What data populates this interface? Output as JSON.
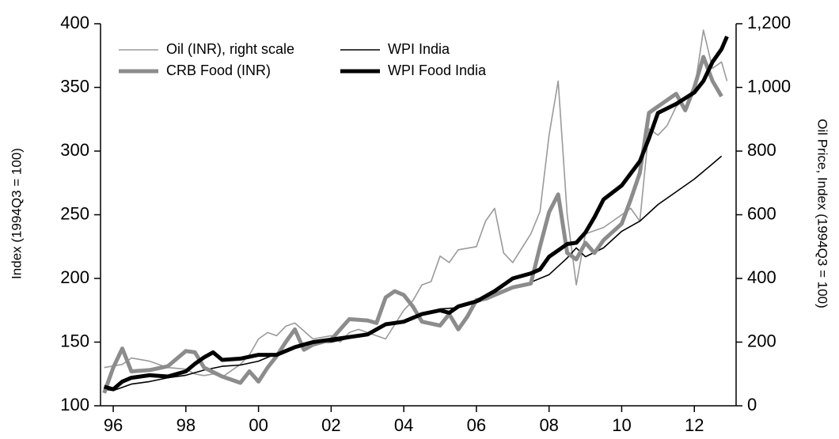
{
  "chart_data": {
    "type": "line",
    "y_label": "Index (1994Q3 = 100)",
    "y2_label": "Oil Price, Index (1994Q3 = 100)",
    "xlim": [
      1995.65,
      2013.15
    ],
    "xticks": [
      {
        "value": 1996,
        "label": "96"
      },
      {
        "value": 1998,
        "label": "98"
      },
      {
        "value": 2000,
        "label": "00"
      },
      {
        "value": 2002,
        "label": "02"
      },
      {
        "value": 2004,
        "label": "04"
      },
      {
        "value": 2006,
        "label": "06"
      },
      {
        "value": 2008,
        "label": "08"
      },
      {
        "value": 2010,
        "label": "10"
      },
      {
        "value": 2012,
        "label": "12"
      }
    ],
    "ylim": [
      100,
      400
    ],
    "yticks": [
      100,
      150,
      200,
      250,
      300,
      350,
      400
    ],
    "y2lim": [
      0,
      1200
    ],
    "y2ticks": [
      0,
      200,
      400,
      600,
      800,
      {
        "value": 1000,
        "label": "1,000"
      },
      {
        "value": 1200,
        "label": "1,200"
      }
    ],
    "series": [
      {
        "name": "Oil (INR), right scale",
        "color": "#9a9a9a",
        "axis": "y2",
        "x": [
          1995.75,
          1996,
          1996.25,
          1996.5,
          1996.75,
          1997,
          1997.5,
          1998,
          1998.25,
          1998.5,
          1998.75,
          1999,
          1999.25,
          1999.5,
          1999.75,
          2000,
          2000.25,
          2000.5,
          2000.75,
          2001,
          2001.5,
          2002,
          2002.25,
          2002.5,
          2002.75,
          2003,
          2003.5,
          2004,
          2004.25,
          2004.5,
          2004.75,
          2005,
          2005.25,
          2005.5,
          2006,
          2006.25,
          2006.5,
          2006.75,
          2007,
          2007.5,
          2007.75,
          2008,
          2008.25,
          2008.5,
          2008.75,
          2009,
          2009.5,
          2010,
          2010.25,
          2010.5,
          2010.75,
          2011,
          2011.25,
          2011.5,
          2012,
          2012.25,
          2012.5,
          2012.75,
          2012.9
        ],
        "values": [
          120,
          125,
          130,
          150,
          145,
          140,
          120,
          115,
          100,
          95,
          100,
          90,
          110,
          130,
          160,
          210,
          230,
          220,
          250,
          260,
          210,
          220,
          200,
          230,
          240,
          230,
          210,
          300,
          330,
          380,
          390,
          470,
          450,
          490,
          500,
          580,
          620,
          480,
          450,
          540,
          610,
          850,
          1020,
          600,
          380,
          540,
          560,
          600,
          620,
          580,
          870,
          850,
          880,
          940,
          990,
          1180,
          1060,
          1080,
          1020
        ]
      },
      {
        "name": "WPI India",
        "color": "#000000",
        "axis": "y",
        "x": [
          1995.75,
          1996,
          1996.5,
          1997,
          1997.5,
          1998,
          1998.5,
          1999,
          1999.5,
          2000,
          2000.5,
          2001,
          2001.5,
          2002,
          2002.5,
          2003,
          2003.5,
          2004,
          2004.5,
          2005,
          2005.5,
          2006,
          2006.5,
          2007,
          2007.5,
          2008,
          2008.5,
          2008.75,
          2009,
          2009.5,
          2010,
          2010.5,
          2011,
          2011.5,
          2012,
          2012.5,
          2012.75
        ],
        "values": [
          113,
          112,
          117,
          119,
          122,
          124,
          128,
          131,
          132,
          135,
          141,
          146,
          149,
          150,
          153,
          157,
          163,
          167,
          172,
          176,
          177,
          181,
          186,
          192,
          197,
          203,
          216,
          224,
          217,
          224,
          237,
          245,
          258,
          268,
          278,
          290,
          296
        ]
      },
      {
        "name": "CRB Food (INR)",
        "color": "#8c8c8c",
        "axis": "y",
        "x": [
          1995.75,
          1996,
          1996.25,
          1996.5,
          1997,
          1997.5,
          1998,
          1998.25,
          1998.5,
          1999,
          1999.5,
          1999.75,
          2000,
          2000.25,
          2000.5,
          2000.75,
          2001,
          2001.25,
          2001.5,
          2002,
          2002.5,
          2003,
          2003.25,
          2003.5,
          2003.75,
          2004,
          2004.25,
          2004.5,
          2005,
          2005.25,
          2005.5,
          2005.75,
          2006,
          2006.25,
          2006.5,
          2007,
          2007.5,
          2007.75,
          2008,
          2008.25,
          2008.5,
          2008.75,
          2009,
          2009.25,
          2009.5,
          2010,
          2010.25,
          2010.5,
          2010.75,
          2011,
          2011.5,
          2011.75,
          2012,
          2012.25,
          2012.5,
          2012.75
        ],
        "values": [
          110,
          130,
          145,
          127,
          128,
          131,
          143,
          142,
          130,
          123,
          118,
          127,
          119,
          130,
          139,
          150,
          160,
          144,
          148,
          152,
          168,
          167,
          165,
          185,
          190,
          187,
          178,
          166,
          163,
          172,
          160,
          170,
          183,
          184,
          187,
          193,
          196,
          225,
          252,
          266,
          220,
          215,
          228,
          220,
          230,
          243,
          262,
          283,
          330,
          335,
          345,
          332,
          350,
          374,
          355,
          343
        ]
      },
      {
        "name": "WPI Food India",
        "color": "#000000",
        "axis": "y",
        "x": [
          1995.75,
          1996,
          1996.25,
          1996.5,
          1997,
          1997.5,
          1998,
          1998.25,
          1998.5,
          1998.75,
          1999,
          1999.5,
          2000,
          2000.5,
          2001,
          2001.5,
          2002,
          2002.5,
          2003,
          2003.5,
          2004,
          2004.5,
          2005,
          2005.25,
          2005.5,
          2006,
          2006.5,
          2007,
          2007.5,
          2007.75,
          2008,
          2008.25,
          2008.5,
          2008.75,
          2009,
          2009.25,
          2009.5,
          2010,
          2010.5,
          2010.75,
          2011,
          2011.5,
          2012,
          2012.25,
          2012.5,
          2012.75,
          2012.9
        ],
        "values": [
          115,
          113,
          119,
          122,
          124,
          123,
          127,
          133,
          138,
          142,
          136,
          137,
          140,
          140,
          146,
          150,
          152,
          154,
          156,
          164,
          166,
          172,
          175,
          173,
          178,
          182,
          190,
          200,
          204,
          207,
          217,
          222,
          227,
          228,
          236,
          248,
          262,
          273,
          292,
          310,
          330,
          337,
          346,
          355,
          370,
          380,
          390
        ]
      }
    ]
  }
}
